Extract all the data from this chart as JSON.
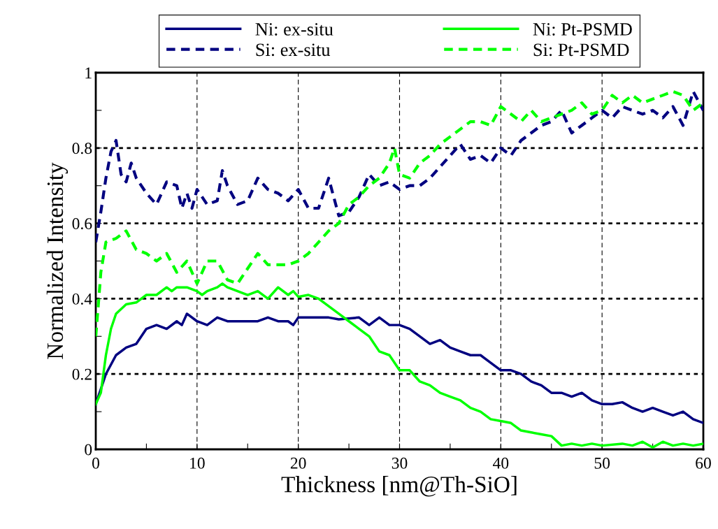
{
  "chart_data": {
    "type": "line",
    "xlabel": "Thickness [nm@Th-SiO]",
    "ylabel": "Normalized Intensity",
    "xlim": [
      0,
      60
    ],
    "ylim": [
      0,
      1
    ],
    "xticks": [
      0,
      {
        "value": 5,
        "label": null
      },
      10,
      {
        "value": 15,
        "label": null
      },
      20,
      {
        "value": 25,
        "label": null
      },
      30,
      {
        "value": 35,
        "label": null
      },
      40,
      {
        "value": 45,
        "label": null
      },
      50,
      {
        "value": 55,
        "label": null
      },
      60
    ],
    "yticks": [
      0,
      {
        "value": 0.1,
        "label": null
      },
      0.2,
      {
        "value": 0.3,
        "label": null
      },
      0.4,
      {
        "value": 0.5,
        "label": null
      },
      0.6,
      {
        "value": 0.7,
        "label": null
      },
      0.8,
      {
        "value": 0.9,
        "label": null
      },
      1
    ],
    "grid": true,
    "legend": "top",
    "marker": "none",
    "series": [
      {
        "name": "Ni: ex-situ",
        "color": "#000080",
        "line_style": "solid",
        "x": [
          0,
          1,
          2,
          3,
          4,
          4.5,
          5,
          6,
          7,
          8,
          8.5,
          9,
          10,
          11,
          12,
          13,
          14,
          16,
          17,
          18,
          19,
          19.5,
          20,
          22,
          23,
          24,
          26,
          27,
          28,
          29,
          30,
          31,
          32,
          33,
          34,
          35,
          36,
          37,
          38,
          39,
          40,
          41,
          42,
          43,
          44,
          45,
          46,
          47,
          48,
          49,
          50,
          51,
          52,
          53,
          54,
          55,
          56,
          57,
          58,
          59,
          60
        ],
        "values": [
          0.12,
          0.2,
          0.25,
          0.27,
          0.28,
          0.3,
          0.32,
          0.33,
          0.32,
          0.34,
          0.33,
          0.36,
          0.34,
          0.33,
          0.35,
          0.34,
          0.34,
          0.34,
          0.35,
          0.34,
          0.34,
          0.33,
          0.35,
          0.35,
          0.35,
          0.345,
          0.35,
          0.33,
          0.35,
          0.33,
          0.33,
          0.32,
          0.3,
          0.28,
          0.29,
          0.27,
          0.26,
          0.25,
          0.25,
          0.23,
          0.21,
          0.21,
          0.2,
          0.18,
          0.17,
          0.15,
          0.15,
          0.14,
          0.15,
          0.13,
          0.12,
          0.12,
          0.125,
          0.11,
          0.1,
          0.11,
          0.1,
          0.09,
          0.1,
          0.08,
          0.07
        ]
      },
      {
        "name": "Ni: Pt-PSMD",
        "color": "#00ff00",
        "line_style": "solid",
        "x": [
          0,
          0.5,
          1,
          1.5,
          2,
          3,
          4,
          5,
          6,
          7,
          7.5,
          8,
          9,
          10,
          10.5,
          11,
          12,
          12.5,
          13,
          14,
          15,
          16,
          17,
          18,
          19,
          19.5,
          20,
          21,
          22,
          23,
          24,
          25,
          26,
          27,
          28,
          29,
          30,
          31,
          32,
          33,
          34,
          35,
          36,
          37,
          38,
          39,
          40,
          41,
          42,
          43,
          44,
          45,
          46,
          47,
          48,
          49,
          50,
          52,
          53,
          54,
          55,
          56,
          57,
          58,
          59,
          60
        ],
        "values": [
          0.12,
          0.15,
          0.25,
          0.32,
          0.36,
          0.385,
          0.39,
          0.41,
          0.41,
          0.43,
          0.42,
          0.43,
          0.43,
          0.42,
          0.41,
          0.42,
          0.43,
          0.44,
          0.43,
          0.42,
          0.41,
          0.42,
          0.4,
          0.43,
          0.41,
          0.42,
          0.405,
          0.41,
          0.4,
          0.38,
          0.36,
          0.34,
          0.32,
          0.3,
          0.26,
          0.25,
          0.21,
          0.21,
          0.18,
          0.17,
          0.15,
          0.14,
          0.13,
          0.11,
          0.1,
          0.08,
          0.075,
          0.07,
          0.05,
          0.045,
          0.04,
          0.035,
          0.01,
          0.015,
          0.01,
          0.015,
          0.01,
          0.015,
          0.01,
          0.02,
          0.005,
          0.02,
          0.01,
          0.015,
          0.01,
          0.015
        ]
      },
      {
        "name": "Si: ex-situ",
        "color": "#000080",
        "line_style": "dashed",
        "x": [
          0,
          0.5,
          1,
          1.5,
          2,
          2.5,
          3,
          3.5,
          4,
          5,
          6,
          7,
          8,
          8.5,
          9,
          9.5,
          10,
          11,
          12,
          12.5,
          13,
          14,
          15,
          16,
          17,
          18,
          19,
          20,
          21,
          22,
          23,
          24,
          25,
          26,
          27,
          28,
          29,
          30,
          31,
          32,
          33,
          34,
          35,
          36,
          37,
          38,
          39,
          40,
          41,
          42,
          43,
          44,
          45,
          46,
          47,
          48,
          49,
          50,
          51,
          52,
          53,
          54,
          55,
          56,
          57,
          58,
          59,
          60
        ],
        "values": [
          0.55,
          0.63,
          0.72,
          0.79,
          0.82,
          0.73,
          0.71,
          0.76,
          0.72,
          0.68,
          0.65,
          0.71,
          0.7,
          0.64,
          0.68,
          0.64,
          0.69,
          0.65,
          0.66,
          0.74,
          0.7,
          0.65,
          0.66,
          0.72,
          0.69,
          0.68,
          0.66,
          0.69,
          0.64,
          0.64,
          0.72,
          0.62,
          0.63,
          0.67,
          0.73,
          0.7,
          0.71,
          0.69,
          0.7,
          0.7,
          0.72,
          0.75,
          0.78,
          0.81,
          0.77,
          0.78,
          0.76,
          0.8,
          0.78,
          0.82,
          0.84,
          0.86,
          0.87,
          0.9,
          0.84,
          0.86,
          0.88,
          0.9,
          0.88,
          0.91,
          0.9,
          0.89,
          0.9,
          0.88,
          0.91,
          0.86,
          0.95,
          0.9
        ]
      },
      {
        "name": "Si: Pt-PSMD",
        "color": "#00ff00",
        "line_style": "dashed",
        "x": [
          0,
          0.3,
          0.5,
          1,
          2,
          3,
          4,
          5,
          6,
          7,
          8,
          9,
          10,
          11,
          12,
          13,
          14,
          15,
          16,
          17,
          18,
          19,
          20,
          21,
          22,
          23,
          24,
          25,
          26,
          27,
          28,
          29,
          29.5,
          30,
          31,
          32,
          33,
          34,
          35,
          36,
          37,
          38,
          39,
          40,
          41,
          42,
          43,
          44,
          45,
          46,
          47,
          48,
          49,
          50,
          51,
          52,
          53,
          54,
          55,
          56,
          57,
          58,
          59,
          60
        ],
        "values": [
          0.3,
          0.4,
          0.47,
          0.55,
          0.56,
          0.58,
          0.53,
          0.52,
          0.5,
          0.52,
          0.47,
          0.5,
          0.44,
          0.5,
          0.5,
          0.45,
          0.44,
          0.48,
          0.52,
          0.49,
          0.49,
          0.49,
          0.5,
          0.52,
          0.55,
          0.58,
          0.6,
          0.65,
          0.67,
          0.7,
          0.72,
          0.76,
          0.8,
          0.73,
          0.72,
          0.76,
          0.78,
          0.81,
          0.83,
          0.85,
          0.87,
          0.87,
          0.86,
          0.91,
          0.89,
          0.87,
          0.9,
          0.87,
          0.88,
          0.89,
          0.9,
          0.92,
          0.89,
          0.9,
          0.94,
          0.92,
          0.94,
          0.92,
          0.93,
          0.94,
          0.95,
          0.94,
          0.9,
          0.92
        ]
      }
    ]
  }
}
